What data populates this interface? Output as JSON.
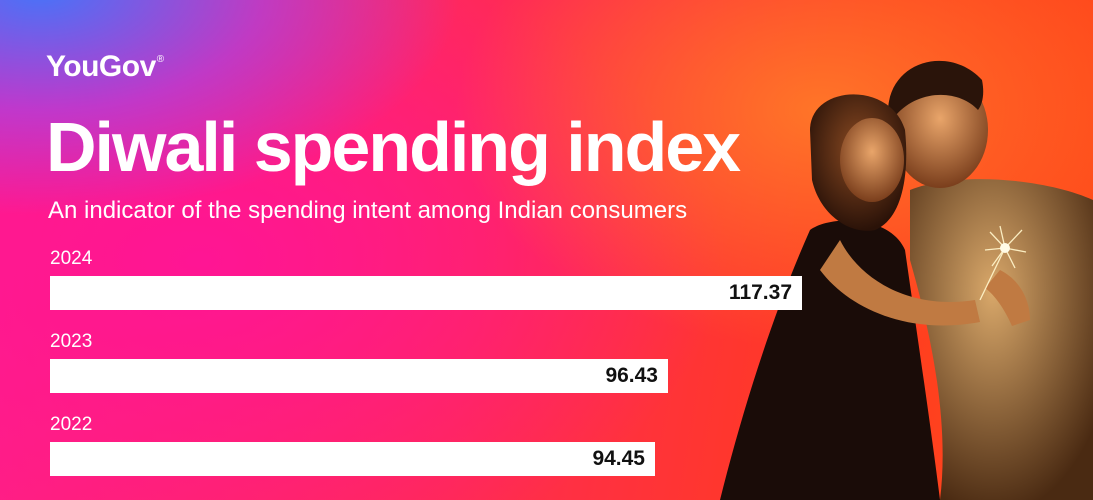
{
  "brand": {
    "logo_text": "YouGov",
    "logo_mark": "®"
  },
  "header": {
    "title": "Diwali spending index",
    "subtitle": "An indicator of the spending intent among Indian consumers"
  },
  "colors": {
    "bar": "#ffffff",
    "value_text": "#111111",
    "text": "#ffffff"
  },
  "chart_data": {
    "type": "bar",
    "orientation": "horizontal",
    "title": "Diwali spending index",
    "subtitle": "An indicator of the spending intent among Indian consumers",
    "categories": [
      "2024",
      "2023",
      "2022"
    ],
    "values": [
      117.37,
      96.43,
      94.45
    ],
    "value_labels": [
      "117.37",
      "96.43",
      "94.45"
    ],
    "xlim": [
      0,
      117.37
    ],
    "grid": false,
    "legend": "none"
  }
}
